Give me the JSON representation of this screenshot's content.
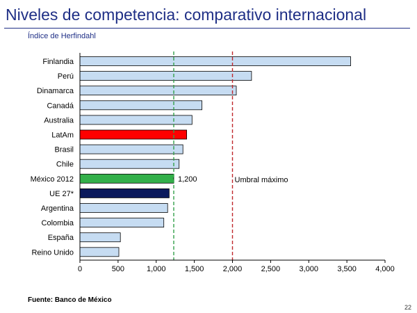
{
  "slide": {
    "title": "Niveles de competencia: comparativo internacional",
    "subtitle": "Índice de Herfindahl",
    "source": "Fuente: Banco de México",
    "page_number": "22"
  },
  "chart_data": {
    "type": "bar",
    "orientation": "horizontal",
    "categories": [
      "Finlandia",
      "Perú",
      "Dinamarca",
      "Canadá",
      "Australia",
      "LatAm",
      "Brasil",
      "Chile",
      "México 2012",
      "UE 27*",
      "Argentina",
      "Colombia",
      "España",
      "Reino Unido"
    ],
    "values": [
      3550,
      2250,
      2050,
      1600,
      1470,
      1400,
      1350,
      1300,
      1230,
      1170,
      1150,
      1100,
      530,
      510
    ],
    "bar_colors": [
      "#c6dcf2",
      "#c6dcf2",
      "#c6dcf2",
      "#c6dcf2",
      "#c6dcf2",
      "#ff0000",
      "#c6dcf2",
      "#c6dcf2",
      "#33b04a",
      "#0b1a5c",
      "#c6dcf2",
      "#c6dcf2",
      "#c6dcf2",
      "#c6dcf2"
    ],
    "xlim": [
      0,
      4000
    ],
    "xticks": [
      0,
      500,
      1000,
      1500,
      2000,
      2500,
      3000,
      3500,
      4000
    ],
    "xtick_labels": [
      "0",
      "500",
      "1,000",
      "1,500",
      "2,000",
      "2,500",
      "3,000",
      "3,500",
      "4,000"
    ],
    "reference_lines": [
      {
        "value": 1230,
        "color": "#33a04a",
        "style": "dashed",
        "label": "1,200"
      },
      {
        "value": 2000,
        "color": "#c0282d",
        "style": "dashed",
        "label": "Umbral máximo"
      }
    ],
    "grid": false,
    "legend": "none"
  }
}
